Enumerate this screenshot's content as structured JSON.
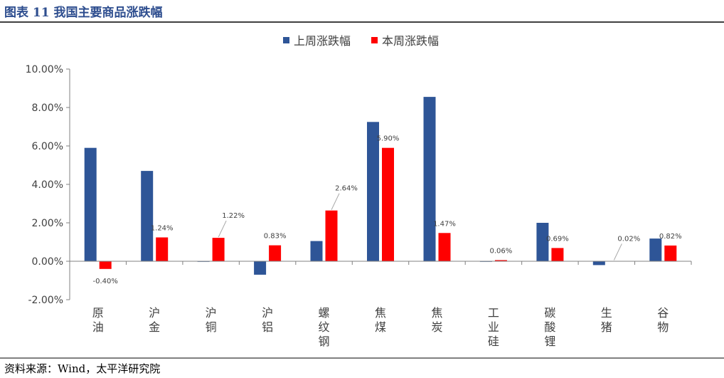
{
  "header": {
    "title": "图表 11 我国主要商品涨跌幅"
  },
  "footer": {
    "source": "资料来源：Wind，太平洋研究院"
  },
  "colors": {
    "title": "#2E4E8F",
    "last_week": "#2E5597",
    "this_week": "#FF0000",
    "axis": "#808080",
    "leader": "#A6A6A6",
    "rule": "#000000"
  },
  "chart_data": {
    "type": "bar",
    "categories": [
      "原油",
      "沪金",
      "沪铜",
      "沪铝",
      "螺纹钢",
      "焦煤",
      "焦炭",
      "工业硅",
      "碳酸锂",
      "生猪",
      "谷物"
    ],
    "series": [
      {
        "name": "上周涨跌幅",
        "values": [
          5.9,
          4.7,
          0.0,
          -0.7,
          1.05,
          7.25,
          8.55,
          0.0,
          2.0,
          -0.2,
          1.18
        ]
      },
      {
        "name": "本周涨跌幅",
        "values": [
          -0.4,
          1.24,
          1.22,
          0.83,
          2.64,
          5.9,
          1.47,
          0.06,
          0.69,
          0.02,
          0.82
        ]
      }
    ],
    "data_labels": [
      "-0.40%",
      "1.24%",
      "1.22%",
      "0.83%",
      "2.64%",
      "5.90%",
      "1.47%",
      "0.06%",
      "0.69%",
      "0.02%",
      "0.82%"
    ],
    "yticks": [
      "-2.00%",
      "0.00%",
      "2.00%",
      "4.00%",
      "6.00%",
      "8.00%",
      "10.00%"
    ],
    "ylim": [
      -2,
      10
    ],
    "legend_position": "top-center",
    "grid": false
  }
}
